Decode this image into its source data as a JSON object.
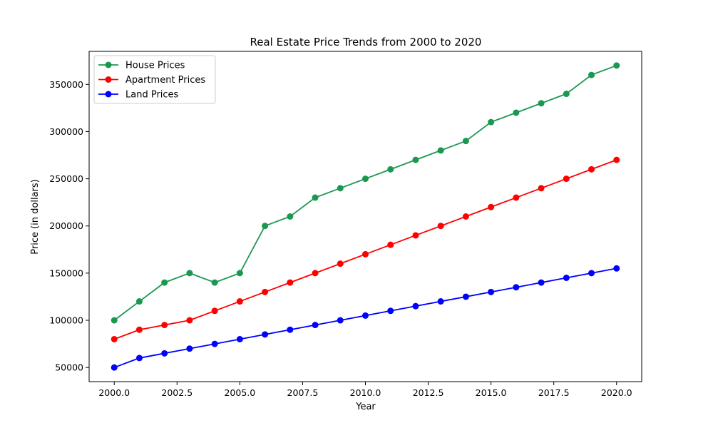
{
  "chart_data": {
    "type": "line",
    "title": "Real Estate Price Trends from 2000 to 2020",
    "xlabel": "Year",
    "ylabel": "Price (in dollars)",
    "x": [
      2000,
      2001,
      2002,
      2003,
      2004,
      2005,
      2006,
      2007,
      2008,
      2009,
      2010,
      2011,
      2012,
      2013,
      2014,
      2015,
      2016,
      2017,
      2018,
      2019,
      2020
    ],
    "xlim": [
      1999,
      2021
    ],
    "ylim": [
      35000,
      385000
    ],
    "x_ticks": [
      2000.0,
      2002.5,
      2005.0,
      2007.5,
      2010.0,
      2012.5,
      2015.0,
      2017.5,
      2020.0
    ],
    "x_tick_labels": [
      "2000.0",
      "2002.5",
      "2005.0",
      "2007.5",
      "2010.0",
      "2012.5",
      "2015.0",
      "2017.5",
      "2020.0"
    ],
    "y_ticks": [
      50000,
      100000,
      150000,
      200000,
      250000,
      300000,
      350000
    ],
    "y_tick_labels": [
      "50000",
      "100000",
      "150000",
      "200000",
      "250000",
      "300000",
      "350000"
    ],
    "grid": false,
    "legend_position": "top-left",
    "series": [
      {
        "name": "House Prices",
        "color": "#1a9850",
        "values": [
          100000,
          120000,
          140000,
          150000,
          140000,
          150000,
          200000,
          210000,
          230000,
          240000,
          250000,
          260000,
          270000,
          280000,
          290000,
          310000,
          320000,
          330000,
          340000,
          360000,
          370000
        ]
      },
      {
        "name": "Apartment Prices",
        "color": "#ff0000",
        "values": [
          80000,
          90000,
          95000,
          100000,
          110000,
          120000,
          130000,
          140000,
          150000,
          160000,
          170000,
          180000,
          190000,
          200000,
          210000,
          220000,
          230000,
          240000,
          250000,
          260000,
          270000
        ]
      },
      {
        "name": "Land Prices",
        "color": "#0000ff",
        "values": [
          50000,
          60000,
          65000,
          70000,
          75000,
          80000,
          85000,
          90000,
          95000,
          100000,
          105000,
          110000,
          115000,
          120000,
          125000,
          130000,
          135000,
          140000,
          145000,
          150000,
          155000
        ]
      }
    ]
  }
}
